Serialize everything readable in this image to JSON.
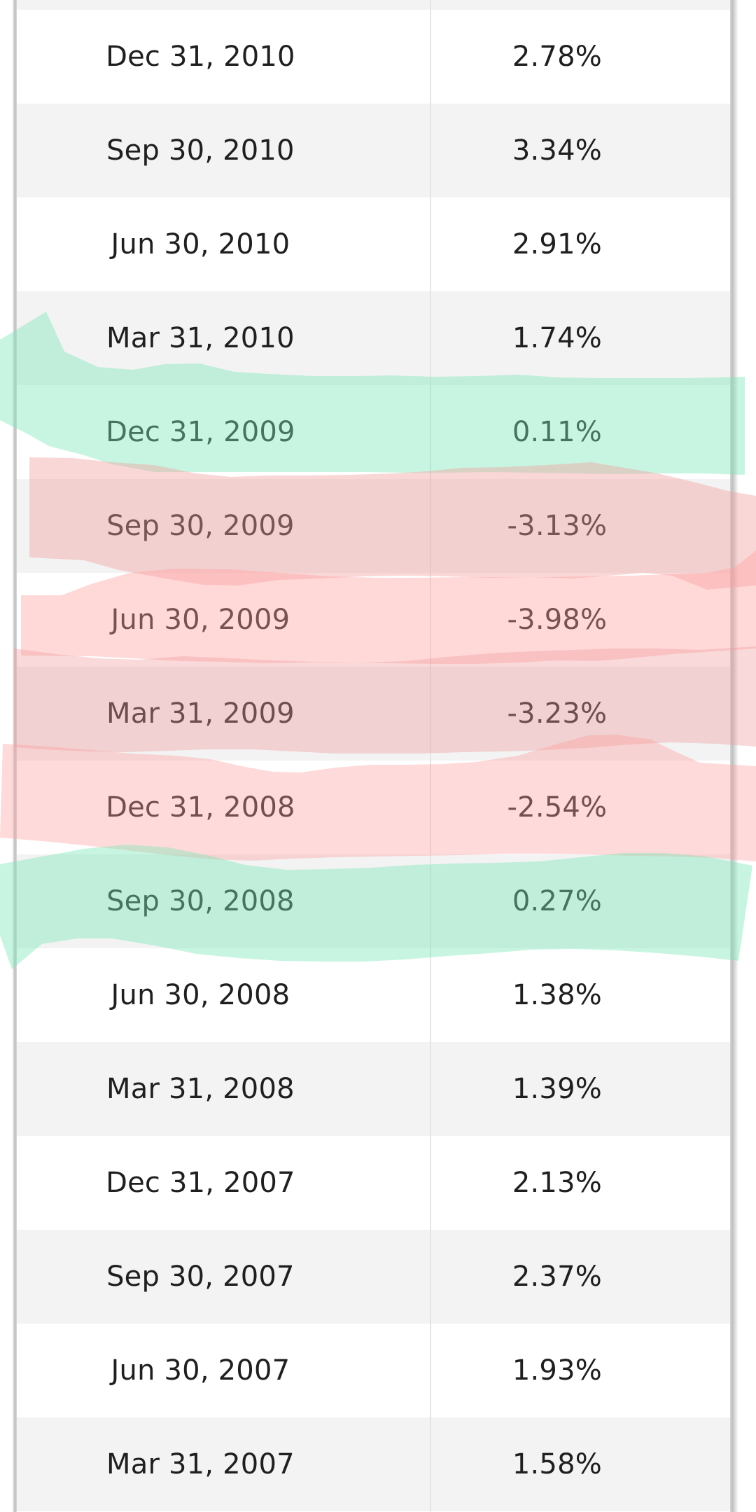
{
  "table": {
    "rows": [
      {
        "date": "Dec 31, 2010",
        "value": "2.78%"
      },
      {
        "date": "Sep 30, 2010",
        "value": "3.34%"
      },
      {
        "date": "Jun 30, 2010",
        "value": "2.91%"
      },
      {
        "date": "Mar 31, 2010",
        "value": "1.74%"
      },
      {
        "date": "Dec 31, 2009",
        "value": "0.11%"
      },
      {
        "date": "Sep 30, 2009",
        "value": "-3.13%"
      },
      {
        "date": "Jun 30, 2009",
        "value": "-3.98%"
      },
      {
        "date": "Mar 31, 2009",
        "value": "-3.23%"
      },
      {
        "date": "Dec 31, 2008",
        "value": "-2.54%"
      },
      {
        "date": "Sep 30, 2008",
        "value": "0.27%"
      },
      {
        "date": "Jun 30, 2008",
        "value": "1.38%"
      },
      {
        "date": "Mar 31, 2008",
        "value": "1.39%"
      },
      {
        "date": "Dec 31, 2007",
        "value": "2.13%"
      },
      {
        "date": "Sep 30, 2007",
        "value": "2.37%"
      },
      {
        "date": "Jun 30, 2007",
        "value": "1.93%"
      },
      {
        "date": "Mar 31, 2007",
        "value": "1.58%"
      }
    ]
  },
  "highlights": {
    "positive_color": "#c8f5e2",
    "negative_color": "#ffd0d0"
  }
}
